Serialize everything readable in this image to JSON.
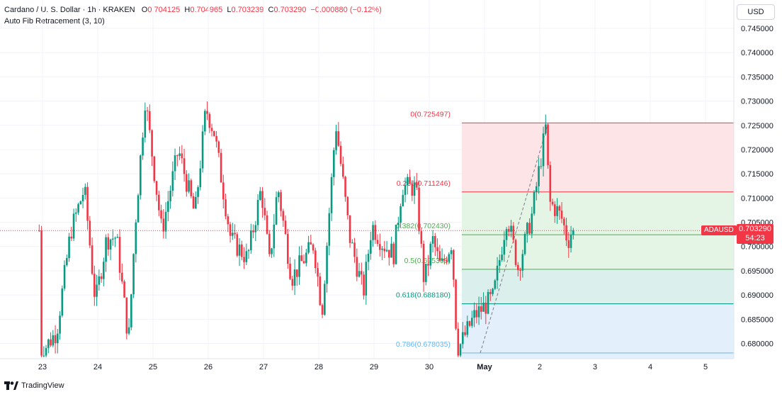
{
  "legend": {
    "symbol": "Cardano / U. S. Dollar · 1h · KRAKEN",
    "open_label": "O",
    "open": "0.704125",
    "high_label": "H",
    "high": "0.704965",
    "low_label": "L",
    "low": "0.703239",
    "close_label": "C",
    "close": "0.703290",
    "change": "−0.000880 (−0.12%)",
    "indicator": "Auto Fib Retracement (3, 10)"
  },
  "currency_button": "USD",
  "price_tag": {
    "symbol": "ADAUSD",
    "price": "0.703290",
    "countdown": "54:23"
  },
  "brand": "TradingView",
  "colors": {
    "up": "#089981",
    "down": "#f23645"
  },
  "chart_data": {
    "type": "candlestick",
    "x_ticks": [
      "23",
      "24",
      "25",
      "26",
      "27",
      "28",
      "29",
      "30",
      "May",
      "2",
      "3",
      "4",
      "5"
    ],
    "y_ticks": [
      "0.745000",
      "0.740000",
      "0.735000",
      "0.730000",
      "0.725000",
      "0.720000",
      "0.715000",
      "0.710000",
      "0.705000",
      "0.700000",
      "0.695000",
      "0.690000",
      "0.685000",
      "0.680000"
    ],
    "ylim": [
      0.6768,
      0.747
    ],
    "current_price": 0.70329,
    "fib_levels": [
      {
        "label": "0(0.725497)",
        "value": 0.725497,
        "color": "#f23645"
      },
      {
        "label": "0.236(0.711246)",
        "value": 0.711246,
        "color": "#f23645"
      },
      {
        "label": "0.382(0.702430)",
        "value": 0.70243,
        "color": "#4caf50"
      },
      {
        "label": "0.5(0.695303)",
        "value": 0.695303,
        "color": "#4caf50"
      },
      {
        "label": "0.618(0.688180)",
        "value": 0.68818,
        "color": "#089981"
      },
      {
        "label": "0.786(0.678035)",
        "value": 0.678035,
        "color": "#64b5f6"
      }
    ],
    "fib_zones": [
      {
        "from": 0.725497,
        "to": 0.711246,
        "color": "#fde4e6"
      },
      {
        "from": 0.711246,
        "to": 0.695303,
        "color": "#e4f4e5"
      },
      {
        "from": 0.695303,
        "to": 0.68818,
        "color": "#dbefec"
      },
      {
        "from": 0.68818,
        "to": 0.6768,
        "color": "#e3f0fb"
      }
    ],
    "fib_trend": {
      "from": 0.678035,
      "to": 0.725497
    },
    "anchors": [
      {
        "day": 0,
        "price": 0.6778
      },
      {
        "day": 0.3,
        "price": 0.6825
      },
      {
        "day": 0.55,
        "price": 0.703
      },
      {
        "day": 0.8,
        "price": 0.712
      },
      {
        "day": 1.0,
        "price": 0.6885
      },
      {
        "day": 1.2,
        "price": 0.7015
      },
      {
        "day": 1.38,
        "price": 0.702
      },
      {
        "day": 1.6,
        "price": 0.6805
      },
      {
        "day": 1.72,
        "price": 0.7045
      },
      {
        "day": 1.9,
        "price": 0.7305
      },
      {
        "day": 2.2,
        "price": 0.703
      },
      {
        "day": 2.5,
        "price": 0.72
      },
      {
        "day": 2.8,
        "price": 0.7065
      },
      {
        "day": 3.0,
        "price": 0.7285
      },
      {
        "day": 3.15,
        "price": 0.7235
      },
      {
        "day": 3.45,
        "price": 0.7015
      },
      {
        "day": 3.75,
        "price": 0.6975
      },
      {
        "day": 4.0,
        "price": 0.712
      },
      {
        "day": 4.15,
        "price": 0.6965
      },
      {
        "day": 4.3,
        "price": 0.7125
      },
      {
        "day": 4.55,
        "price": 0.6935
      },
      {
        "day": 4.95,
        "price": 0.7005
      },
      {
        "day": 5.1,
        "price": 0.6865
      },
      {
        "day": 5.35,
        "price": 0.7255
      },
      {
        "day": 5.6,
        "price": 0.702
      },
      {
        "day": 5.85,
        "price": 0.6905
      },
      {
        "day": 6.0,
        "price": 0.7045
      },
      {
        "day": 6.2,
        "price": 0.7005
      },
      {
        "day": 6.4,
        "price": 0.6985
      },
      {
        "day": 6.55,
        "price": 0.7125
      },
      {
        "day": 6.8,
        "price": 0.712
      },
      {
        "day": 6.95,
        "price": 0.6925
      },
      {
        "day": 7.1,
        "price": 0.7015
      },
      {
        "day": 7.25,
        "price": 0.6955
      },
      {
        "day": 7.45,
        "price": 0.701
      },
      {
        "day": 7.55,
        "price": 0.6785
      },
      {
        "day": 7.85,
        "price": 0.6855
      },
      {
        "day": 8.2,
        "price": 0.6895
      },
      {
        "day": 8.45,
        "price": 0.7065
      },
      {
        "day": 8.65,
        "price": 0.6955
      },
      {
        "day": 8.9,
        "price": 0.7065
      },
      {
        "day": 9.15,
        "price": 0.7245
      },
      {
        "day": 9.22,
        "price": 0.709
      },
      {
        "day": 9.35,
        "price": 0.7075
      },
      {
        "day": 9.45,
        "price": 0.7055
      },
      {
        "day": 9.55,
        "price": 0.701
      },
      {
        "day": 9.62,
        "price": 0.7033
      }
    ]
  }
}
